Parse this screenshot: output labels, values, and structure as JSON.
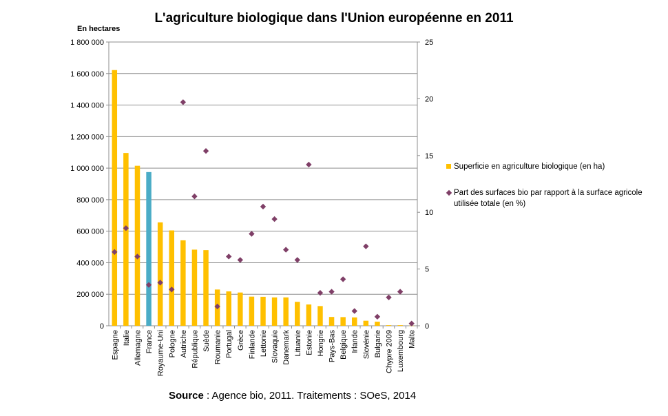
{
  "chart_data": {
    "type": "bar",
    "title": "L'agriculture biologique dans l'Union européenne en 2011",
    "ylabel": "En hectares",
    "ylim": [
      0,
      1800000
    ],
    "y2lim": [
      0,
      25
    ],
    "y_ticks": [
      "0",
      "200 000",
      "400 000",
      "600 000",
      "800 000",
      "1 000 000",
      "1 200 000",
      "1 400 000",
      "1 600 000",
      "1 800 000"
    ],
    "y2_ticks": [
      "0",
      "5",
      "10",
      "15",
      "20",
      "25"
    ],
    "grid": true,
    "legend_position": "right",
    "categories": [
      "Espagne",
      "Italie",
      "Allemagne",
      "France",
      "Royaume-Uni",
      "Pologne",
      "Autriche",
      "République",
      "Suède",
      "Roumanie",
      "Portugal",
      "Grèce",
      "Finlande",
      "Lettonie",
      "Slovaquie",
      "Danemark",
      "Lituanie",
      "Estonie",
      "Hongrie",
      "Pays-Bas",
      "Belgique",
      "Irlande",
      "Slovénie",
      "Bulgarie",
      "Chypre 2009",
      "Luxembourg",
      "Malte"
    ],
    "highlight_category": "France",
    "series": [
      {
        "name": "Superficie en agriculture biologique (en ha)",
        "type": "bar",
        "axis": "left",
        "color": "#ffc000",
        "highlight_color": "#4bacc6",
        "values": [
          1622000,
          1096000,
          1015000,
          975000,
          656000,
          605000,
          542000,
          483000,
          480000,
          230000,
          218000,
          211000,
          185000,
          184000,
          180000,
          180000,
          152000,
          135000,
          125000,
          56000,
          55000,
          53000,
          32000,
          26000,
          4000,
          4000,
          500
        ]
      },
      {
        "name": "Part des surfaces bio par rapport à la surface agricole utilisée totale (en %)",
        "type": "scatter",
        "axis": "right",
        "color": "#7f3f67",
        "values": [
          6.5,
          8.6,
          6.1,
          3.6,
          3.8,
          3.2,
          19.7,
          11.4,
          15.4,
          1.7,
          6.1,
          5.8,
          8.1,
          10.5,
          9.4,
          6.7,
          5.8,
          14.2,
          2.9,
          3.0,
          4.1,
          1.3,
          7.0,
          0.8,
          2.5,
          3.0,
          0.2
        ]
      }
    ]
  },
  "legend": {
    "bar_label": "Superficie en agriculture biologique (en ha)",
    "point_label": "Part des surfaces bio par rapport à la surface agricole utilisée totale (en %)"
  },
  "source": {
    "label": "Source",
    "text": " : Agence bio,  2011. Traitements : SOeS, 2014"
  }
}
